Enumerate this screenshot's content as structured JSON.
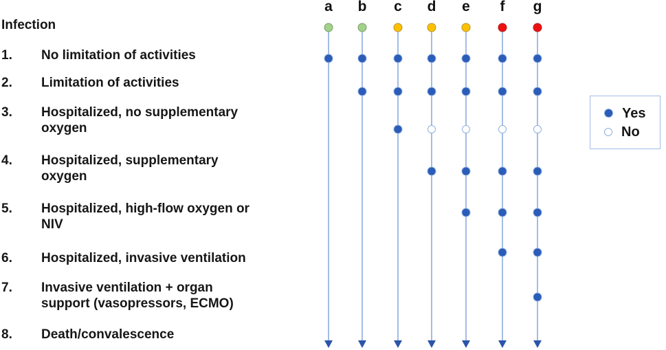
{
  "severity_list": {
    "header": "Infection",
    "items": [
      {
        "num": "1.",
        "lines": [
          "No limitation of activities"
        ]
      },
      {
        "num": "2.",
        "lines": [
          "Limitation of activities"
        ]
      },
      {
        "num": "3.",
        "lines": [
          "Hospitalized, no supplementary",
          "oxygen"
        ]
      },
      {
        "num": "4.",
        "lines": [
          "Hospitalized, supplementary",
          "oxygen"
        ]
      },
      {
        "num": "5.",
        "lines": [
          "Hospitalized, high-flow oxygen or",
          "NIV"
        ]
      },
      {
        "num": "6.",
        "lines": [
          "Hospitalized, invasive ventilation"
        ]
      },
      {
        "num": "7.",
        "lines": [
          "Invasive ventilation + organ",
          "support (vasopressors, ECMO)"
        ]
      },
      {
        "num": "8.",
        "lines": [
          "Death/convalescence"
        ]
      }
    ]
  },
  "legend": {
    "yes_label": "Yes",
    "no_label": "No"
  },
  "colors": {
    "yes_dot_fill": "#2b5cb8",
    "dot_border": "#8fb0e0",
    "no_dot_fill": "#ffffff",
    "line": "#a3bce6",
    "arrow": "#2b55a8",
    "green": "#a2d18b",
    "green_border": "#7d9f66",
    "yellow": "#ffc000",
    "yellow_border": "#b5952e",
    "red": "#ee1010",
    "red_border": "#b02020",
    "text": "#161616"
  },
  "chart_data": {
    "type": "scatter",
    "description": "Seven illustrative disease-course trajectories (columns a-g) plotted against an 8-level ordinal severity scale. Filled blue dot = level reached (Yes), open dot = level skipped (No). Top colored dot marks infection (green = mild course, yellow = moderate, red = severe); each vertical line ends in a downward arrow toward death/convalescence.",
    "y_levels": [
      "Infection",
      "1. No limitation of activities",
      "2. Limitation of activities",
      "3. Hospitalized, no supplementary oxygen",
      "4. Hospitalized, supplementary oxygen",
      "5. Hospitalized, high-flow oxygen or NIV",
      "6. Hospitalized, invasive ventilation",
      "7. Invasive ventilation + organ support (vasopressors, ECMO)",
      "8. Death/convalescence"
    ],
    "legend": [
      {
        "marker": "filled-blue-dot",
        "label": "Yes"
      },
      {
        "marker": "open-white-dot",
        "label": "No"
      }
    ],
    "columns": [
      {
        "letter": "a",
        "infection_dot_color": "green",
        "levels_reached": [
          1
        ],
        "levels_marked_no": []
      },
      {
        "letter": "b",
        "infection_dot_color": "green",
        "levels_reached": [
          1,
          2
        ],
        "levels_marked_no": []
      },
      {
        "letter": "c",
        "infection_dot_color": "yellow",
        "levels_reached": [
          1,
          2,
          3
        ],
        "levels_marked_no": []
      },
      {
        "letter": "d",
        "infection_dot_color": "yellow",
        "levels_reached": [
          1,
          2,
          4
        ],
        "levels_marked_no": [
          3
        ]
      },
      {
        "letter": "e",
        "infection_dot_color": "yellow",
        "levels_reached": [
          1,
          2,
          4,
          5
        ],
        "levels_marked_no": [
          3
        ]
      },
      {
        "letter": "f",
        "infection_dot_color": "red",
        "levels_reached": [
          1,
          2,
          4,
          5,
          6
        ],
        "levels_marked_no": [
          3
        ]
      },
      {
        "letter": "g",
        "infection_dot_color": "red",
        "levels_reached": [
          1,
          2,
          4,
          5,
          6,
          7
        ],
        "levels_marked_no": [
          3
        ]
      }
    ]
  }
}
